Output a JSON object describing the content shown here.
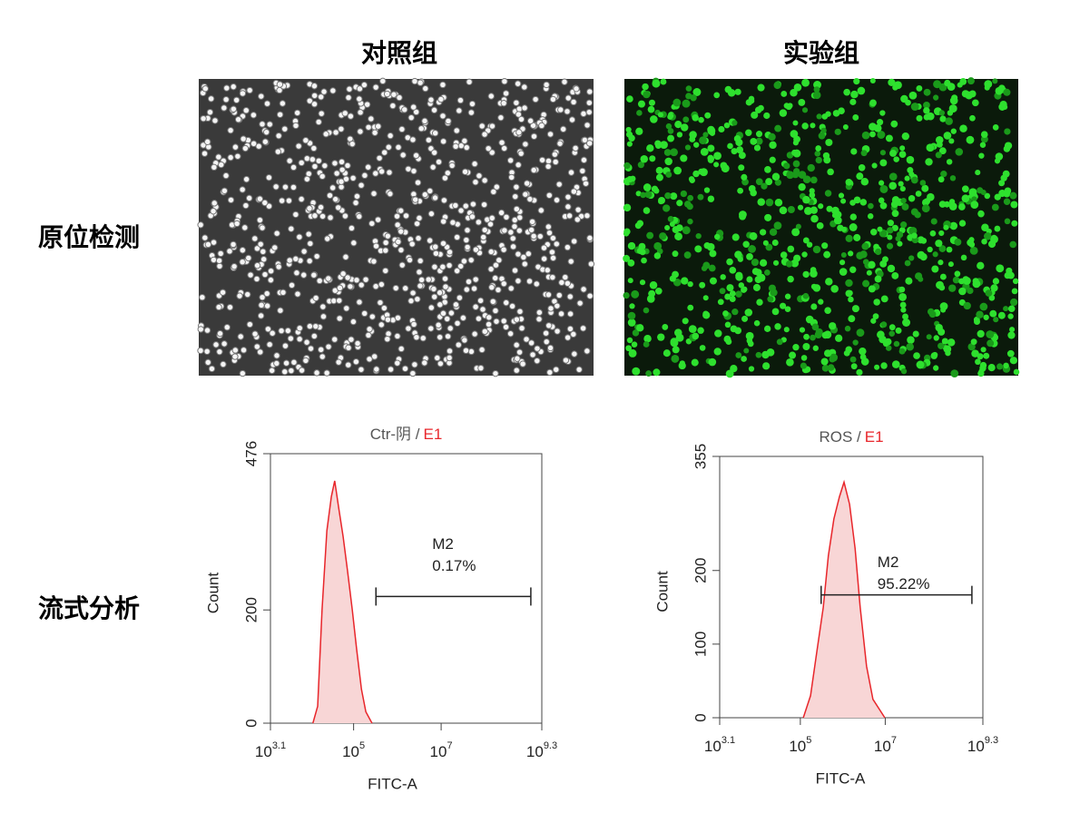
{
  "column_headers": [
    "对照组",
    "实验组"
  ],
  "row_headers": [
    "原位检测",
    "流式分析"
  ],
  "chart_data": [
    {
      "type": "area",
      "title": "Ctr-阴 /",
      "gate": "E1",
      "x_label": "FITC-A",
      "y_label": "Count",
      "xscale": "log",
      "color": "#e8262b",
      "fill": "#f8d6d6",
      "x": [
        11750,
        15100,
        19000,
        24500,
        31000,
        37000,
        45700,
        57500,
        72400,
        93300,
        117500,
        151000,
        190500,
        263000
      ],
      "values": [
        0,
        30,
        200,
        340,
        400,
        428,
        380,
        330,
        270,
        200,
        130,
        60,
        20,
        0
      ],
      "xlim": [
        1259,
        1995262315
      ],
      "xticks": [
        {
          "value": 1259,
          "label": "10",
          "superscript": "3.1"
        },
        {
          "value": 100000,
          "label": "10",
          "superscript": "5"
        },
        {
          "value": 10000000,
          "label": "10",
          "superscript": "7"
        },
        {
          "value": 1995262315,
          "label": "10",
          "superscript": "9.3"
        }
      ],
      "ylim": [
        0,
        476
      ],
      "yticks": [
        0,
        200,
        476
      ],
      "marker": {
        "label": "M2",
        "percent": "0.17%",
        "range": [
          324000,
          1120000000
        ]
      }
    },
    {
      "type": "area",
      "title": "ROS /",
      "gate": "E1",
      "x_label": "FITC-A",
      "y_label": "Count",
      "xscale": "log",
      "color": "#e8262b",
      "fill": "#f8d6d6",
      "x": [
        117500,
        174000,
        245000,
        347000,
        457000,
        617000,
        832000,
        1070000,
        1445000,
        1950000,
        2570000,
        3630000,
        5130000,
        9770000
      ],
      "values": [
        0,
        30,
        90,
        150,
        220,
        270,
        300,
        320,
        290,
        230,
        150,
        70,
        25,
        0
      ],
      "xlim": [
        1259,
        1995262315
      ],
      "xticks": [
        {
          "value": 1259,
          "label": "10",
          "superscript": "3.1"
        },
        {
          "value": 100000,
          "label": "10",
          "superscript": "5"
        },
        {
          "value": 10000000,
          "label": "10",
          "superscript": "7"
        },
        {
          "value": 1995262315,
          "label": "10",
          "superscript": "9.3"
        }
      ],
      "ylim": [
        0,
        355
      ],
      "yticks": [
        0,
        100,
        200,
        355
      ],
      "marker": {
        "label": "M2",
        "percent": "95.22%",
        "range": [
          309000,
          1100000000
        ]
      }
    }
  ]
}
